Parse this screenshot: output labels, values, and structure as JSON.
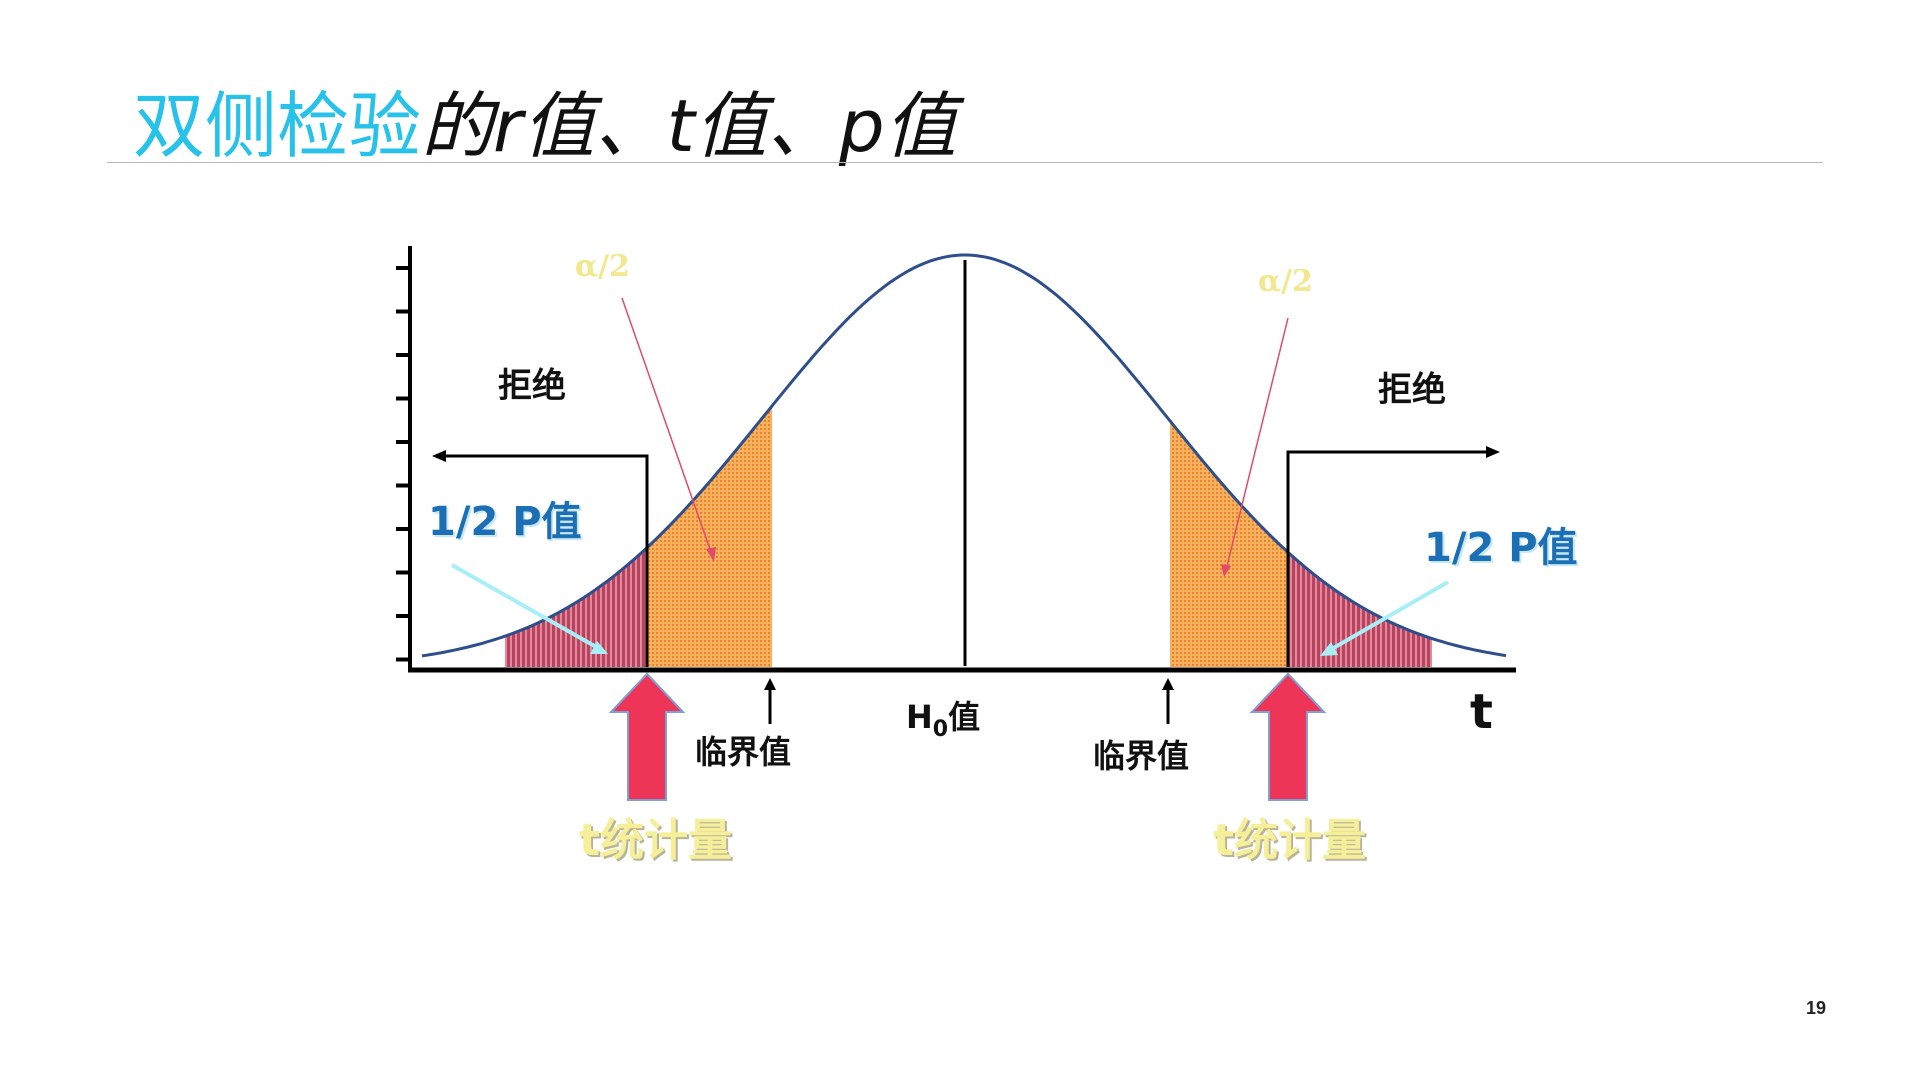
{
  "slide": {
    "title_accent": "双侧检验",
    "title_rest": "的r值、t值、p值",
    "page_number": "19"
  },
  "diagram": {
    "left_reject": "拒绝",
    "right_reject": "拒绝",
    "left_alpha": "α/2",
    "right_alpha": "α/2",
    "left_half_p": "1/2 P值",
    "right_half_p": "1/2 P值",
    "left_critical": "临界值",
    "right_critical": "临界值",
    "h0_main": "H",
    "h0_sub": "0",
    "h0_suffix": "值",
    "axis_label": "t",
    "left_tstat": "t统计量",
    "right_tstat": "t统计量"
  },
  "colors": {
    "title_accent": "#27c2ea",
    "curve": "#2e4e8c",
    "alpha_region": "#f3a24e",
    "p_region": "#c84a6b",
    "stat_arrow": "#ee3558",
    "half_p_text": "#1c6fb5"
  }
}
